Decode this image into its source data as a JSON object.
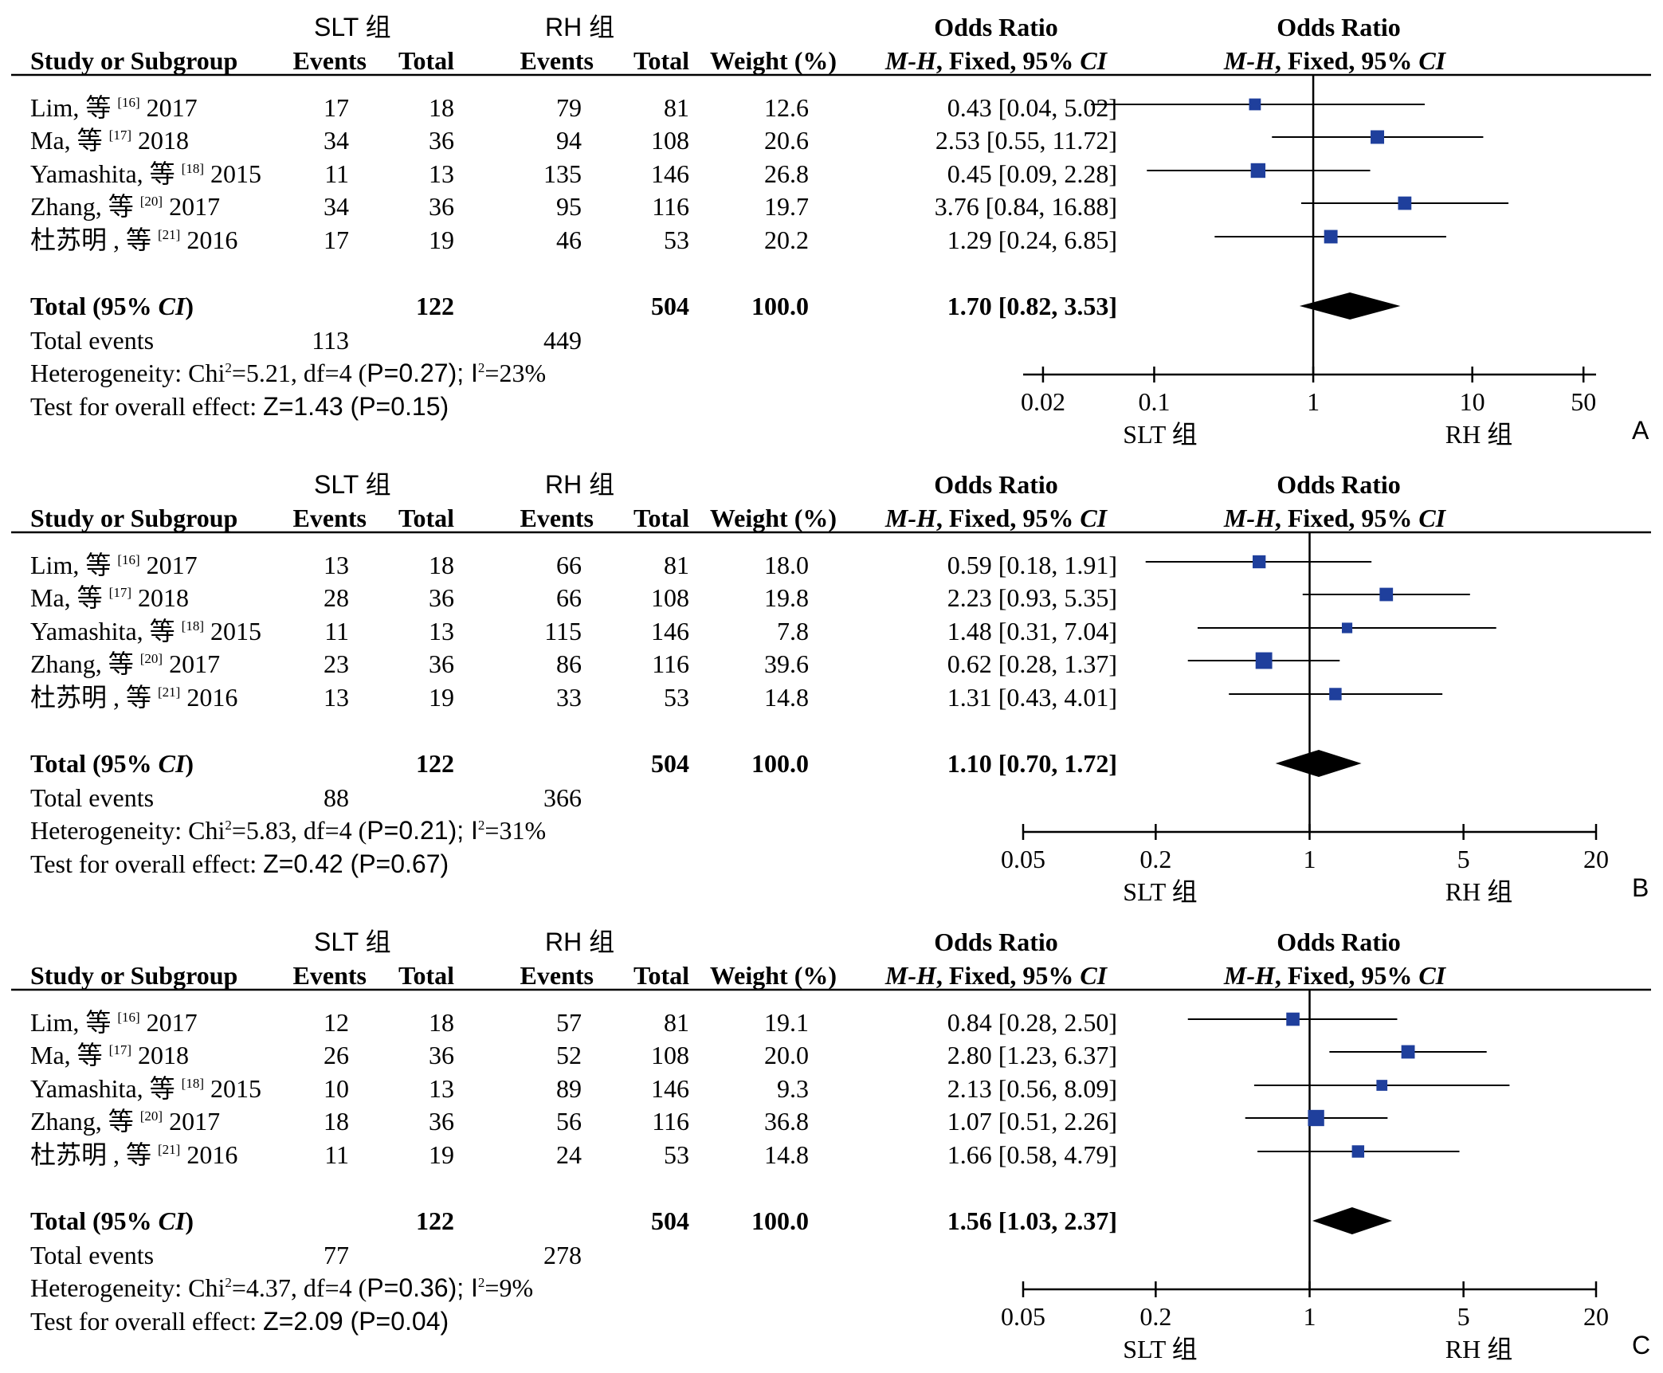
{
  "header": {
    "group1": "SLT 组",
    "group2": "RH 组",
    "or_label": "Odds Ratio",
    "col_study": "Study or Subgroup",
    "col_events": "Events",
    "col_total": "Total",
    "col_weight": "Weight (%)",
    "or_method_a": "M-H",
    "or_method_b": ", Fixed, 95% ",
    "or_method_c": "CI"
  },
  "labels": {
    "total_a": "Total (95% ",
    "total_b": "CI",
    "total_c": ")",
    "total_events": "Total events",
    "favours_left": "SLT 组",
    "favours_right": "RH 组"
  },
  "chart_data": [
    {
      "type": "forest",
      "panel_letter": "A",
      "studies": [
        {
          "name": "Lim, 等",
          "ref": "[16]",
          "year": "2017",
          "e1": "17",
          "n1": "18",
          "e2": "79",
          "n2": "81",
          "weight": "12.6",
          "or_text": "0.43 [0.04, 5.02]",
          "or": 0.43,
          "lo": 0.04,
          "hi": 5.02,
          "w": 12.6
        },
        {
          "name": "Ma, 等",
          "ref": "[17]",
          "year": "2018",
          "e1": "34",
          "n1": "36",
          "e2": "94",
          "n2": "108",
          "weight": "20.6",
          "or_text": "2.53 [0.55, 11.72]",
          "or": 2.53,
          "lo": 0.55,
          "hi": 11.72,
          "w": 20.6
        },
        {
          "name": "Yamashita, 等",
          "ref": "[18]",
          "year": "2015",
          "e1": "11",
          "n1": "13",
          "e2": "135",
          "n2": "146",
          "weight": "26.8",
          "or_text": "0.45 [0.09, 2.28]",
          "or": 0.45,
          "lo": 0.09,
          "hi": 2.28,
          "w": 26.8
        },
        {
          "name": "Zhang, 等",
          "ref": "[20]",
          "year": "2017",
          "e1": "34",
          "n1": "36",
          "e2": "95",
          "n2": "116",
          "weight": "19.7",
          "or_text": "3.76 [0.84, 16.88]",
          "or": 3.76,
          "lo": 0.84,
          "hi": 16.88,
          "w": 19.7
        },
        {
          "name": "杜苏明 , 等",
          "ref": "[21]",
          "year": "2016",
          "e1": "17",
          "n1": "19",
          "e2": "46",
          "n2": "53",
          "weight": "20.2",
          "or_text": "1.29 [0.24, 6.85]",
          "or": 1.29,
          "lo": 0.24,
          "hi": 6.85,
          "w": 20.2
        }
      ],
      "total": {
        "n1": "122",
        "n2": "504",
        "weight": "100.0",
        "or_text": "1.70 [0.82, 3.53]",
        "or": 1.7,
        "lo": 0.82,
        "hi": 3.53
      },
      "total_events": {
        "e1": "113",
        "e2": "449"
      },
      "heterogeneity": {
        "pre": "Heterogeneity: Chi",
        "stat": "=5.21, df=4 (",
        "p": "P=0.27); ",
        "i": "I",
        "i2": "=23%"
      },
      "overall": {
        "pre": "Test for overall effect: ",
        "z": "Z=1.43 (P=0.15)"
      },
      "x_ticks": [
        0.02,
        0.1,
        1,
        10,
        50
      ],
      "x_tick_labels": [
        "0.02",
        "0.1",
        "1",
        "10",
        "50"
      ],
      "xlim": [
        0.015,
        60
      ],
      "scale": "log"
    },
    {
      "type": "forest",
      "panel_letter": "B",
      "studies": [
        {
          "name": "Lim, 等",
          "ref": "[16]",
          "year": "2017",
          "e1": "13",
          "n1": "18",
          "e2": "66",
          "n2": "81",
          "weight": "18.0",
          "or_text": "0.59 [0.18, 1.91]",
          "or": 0.59,
          "lo": 0.18,
          "hi": 1.91,
          "w": 18.0
        },
        {
          "name": "Ma, 等",
          "ref": "[17]",
          "year": "2018",
          "e1": "28",
          "n1": "36",
          "e2": "66",
          "n2": "108",
          "weight": "19.8",
          "or_text": "2.23 [0.93, 5.35]",
          "or": 2.23,
          "lo": 0.93,
          "hi": 5.35,
          "w": 19.8
        },
        {
          "name": "Yamashita, 等",
          "ref": "[18]",
          "year": "2015",
          "e1": "11",
          "n1": "13",
          "e2": "115",
          "n2": "146",
          "weight": "7.8",
          "or_text": "1.48 [0.31, 7.04]",
          "or": 1.48,
          "lo": 0.31,
          "hi": 7.04,
          "w": 7.8
        },
        {
          "name": "Zhang, 等",
          "ref": "[20]",
          "year": "2017",
          "e1": "23",
          "n1": "36",
          "e2": "86",
          "n2": "116",
          "weight": "39.6",
          "or_text": "0.62 [0.28, 1.37]",
          "or": 0.62,
          "lo": 0.28,
          "hi": 1.37,
          "w": 39.6
        },
        {
          "name": "杜苏明 , 等",
          "ref": "[21]",
          "year": "2016",
          "e1": "13",
          "n1": "19",
          "e2": "33",
          "n2": "53",
          "weight": "14.8",
          "or_text": "1.31 [0.43, 4.01]",
          "or": 1.31,
          "lo": 0.43,
          "hi": 4.01,
          "w": 14.8
        }
      ],
      "total": {
        "n1": "122",
        "n2": "504",
        "weight": "100.0",
        "or_text": "1.10 [0.70, 1.72]",
        "or": 1.1,
        "lo": 0.7,
        "hi": 1.72
      },
      "total_events": {
        "e1": "88",
        "e2": "366"
      },
      "heterogeneity": {
        "pre": "Heterogeneity: Chi",
        "stat": "=5.83, df=4 (",
        "p": "P=0.21); ",
        "i": "I",
        "i2": "=31%"
      },
      "overall": {
        "pre": "Test for overall effect: ",
        "z": "Z=0.42 (P=0.67)"
      },
      "x_ticks": [
        0.05,
        0.2,
        1,
        5,
        20
      ],
      "x_tick_labels": [
        "0.05",
        "0.2",
        "1",
        "5",
        "20"
      ],
      "xlim": [
        0.05,
        20
      ],
      "scale": "log"
    },
    {
      "type": "forest",
      "panel_letter": "C",
      "studies": [
        {
          "name": "Lim, 等",
          "ref": "[16]",
          "year": "2017",
          "e1": "12",
          "n1": "18",
          "e2": "57",
          "n2": "81",
          "weight": "19.1",
          "or_text": "0.84 [0.28, 2.50]",
          "or": 0.84,
          "lo": 0.28,
          "hi": 2.5,
          "w": 19.1
        },
        {
          "name": "Ma, 等",
          "ref": "[17]",
          "year": "2018",
          "e1": "26",
          "n1": "36",
          "e2": "52",
          "n2": "108",
          "weight": "20.0",
          "or_text": "2.80 [1.23, 6.37]",
          "or": 2.8,
          "lo": 1.23,
          "hi": 6.37,
          "w": 20.0
        },
        {
          "name": "Yamashita, 等",
          "ref": "[18]",
          "year": "2015",
          "e1": "10",
          "n1": "13",
          "e2": "89",
          "n2": "146",
          "weight": "9.3",
          "or_text": "2.13 [0.56, 8.09]",
          "or": 2.13,
          "lo": 0.56,
          "hi": 8.09,
          "w": 9.3
        },
        {
          "name": "Zhang, 等",
          "ref": "[20]",
          "year": "2017",
          "e1": "18",
          "n1": "36",
          "e2": "56",
          "n2": "116",
          "weight": "36.8",
          "or_text": "1.07 [0.51, 2.26]",
          "or": 1.07,
          "lo": 0.51,
          "hi": 2.26,
          "w": 36.8
        },
        {
          "name": "杜苏明 , 等",
          "ref": "[21]",
          "year": "2016",
          "e1": "11",
          "n1": "19",
          "e2": "24",
          "n2": "53",
          "weight": "14.8",
          "or_text": "1.66 [0.58, 4.79]",
          "or": 1.66,
          "lo": 0.58,
          "hi": 4.79,
          "w": 14.8
        }
      ],
      "total": {
        "n1": "122",
        "n2": "504",
        "weight": "100.0",
        "or_text": "1.56 [1.03, 2.37]",
        "or": 1.56,
        "lo": 1.03,
        "hi": 2.37
      },
      "total_events": {
        "e1": "77",
        "e2": "278"
      },
      "heterogeneity": {
        "pre": "Heterogeneity: Chi",
        "stat": "=4.37, df=4 (",
        "p": "P=0.36); ",
        "i": "I",
        "i2": "=9%"
      },
      "overall": {
        "pre": "Test for overall effect: ",
        "z": "Z=2.09 (P=0.04)"
      },
      "x_ticks": [
        0.05,
        0.2,
        1,
        5,
        20
      ],
      "x_tick_labels": [
        "0.05",
        "0.2",
        "1",
        "5",
        "20"
      ],
      "xlim": [
        0.05,
        20
      ],
      "scale": "log"
    }
  ]
}
